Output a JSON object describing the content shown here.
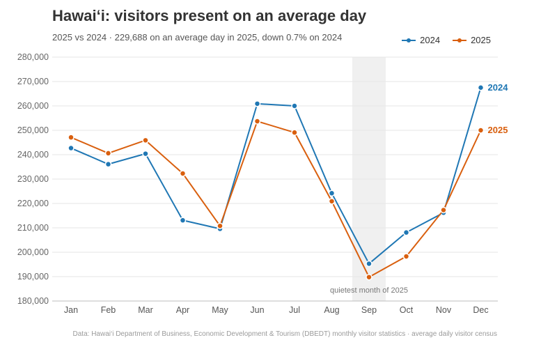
{
  "header": {
    "title": "Hawai‘i: visitors present on an average day",
    "subtitle": "2025 vs 2024  ·  229,688 on an average day in 2025, down 0.7% on 2024"
  },
  "footer": {
    "source": "Data: Hawai‘i Department of Business, Economic Development & Tourism (DBEDT) monthly visitor statistics · average daily visitor census"
  },
  "colors": {
    "series_2024": "#1f77b4",
    "series_2025": "#d95f0e",
    "highlight": "#f0f0f0",
    "grid": "#e6e6e6"
  },
  "chart_data": {
    "type": "line",
    "title": "Hawai‘i: visitors present on an average day",
    "categories": [
      "Jan",
      "Feb",
      "Mar",
      "Apr",
      "May",
      "Jun",
      "Jul",
      "Aug",
      "Sep",
      "Oct",
      "Nov",
      "Dec"
    ],
    "series": [
      {
        "name": "2024",
        "color": "#1f77b4",
        "values": [
          242700,
          236100,
          240400,
          213100,
          209600,
          260900,
          260000,
          224200,
          195300,
          208100,
          216200,
          267500
        ]
      },
      {
        "name": "2025",
        "color": "#d95f0e",
        "values": [
          247100,
          240600,
          245900,
          232300,
          210800,
          253700,
          249100,
          220900,
          189800,
          198300,
          217300,
          250000
        ]
      }
    ],
    "ylim": [
      180000,
      280000
    ],
    "y_ticks": [
      180000,
      190000,
      200000,
      210000,
      220000,
      230000,
      240000,
      250000,
      260000,
      270000,
      280000
    ],
    "y_tick_labels": [
      "180,000",
      "190,000",
      "200,000",
      "210,000",
      "220,000",
      "230,000",
      "240,000",
      "250,000",
      "260,000",
      "270,000",
      "280,000"
    ],
    "grid": true,
    "legend": "top-right",
    "end_labels": [
      "2024",
      "2025"
    ],
    "highlight": {
      "category": "Sep",
      "label": "quietest month of 2025"
    }
  }
}
